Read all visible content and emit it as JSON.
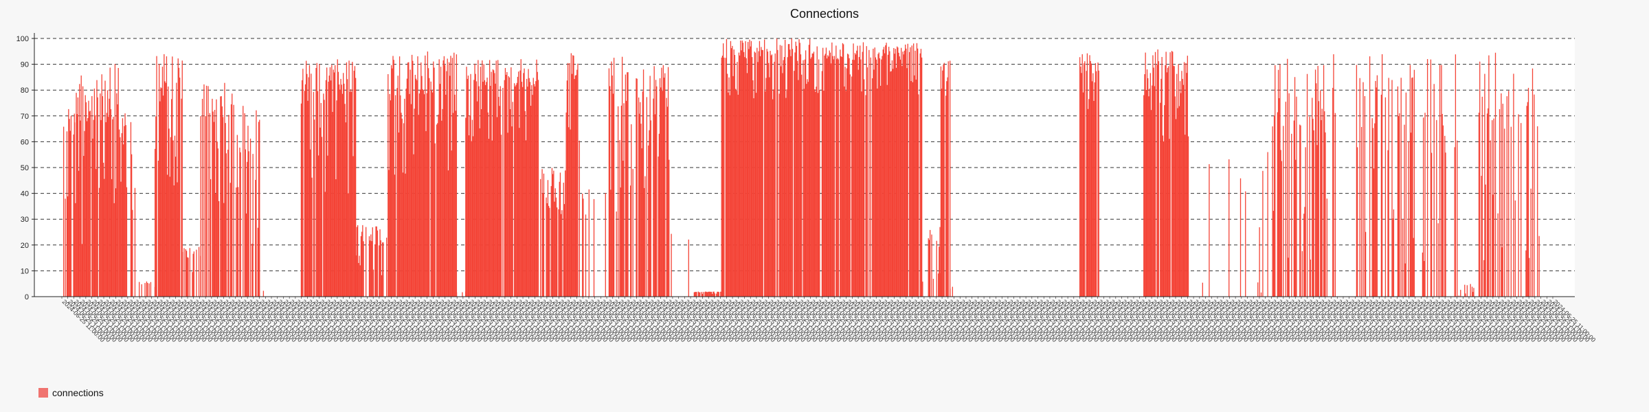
{
  "chart_data": {
    "type": "bar",
    "title": "Connections",
    "xlabel": "",
    "ylabel": "",
    "ylim": [
      0,
      100
    ],
    "yticks": [
      0,
      10,
      20,
      30,
      40,
      50,
      60,
      70,
      80,
      90,
      100
    ],
    "grid": true,
    "legend_position": "bottom-left",
    "colors": {
      "bar": "#f44336",
      "legend": "#f07470",
      "grid": "#333333",
      "axis": "#222222",
      "background": "#ffffff"
    },
    "tick_label_text": "2024-06-25 11:00:00",
    "tick_count": 250,
    "series": [
      {
        "name": "connections",
        "segments": [
          {
            "from": 0.0,
            "to": 0.012,
            "base": 30,
            "peak": 76,
            "density": 0.8
          },
          {
            "from": 0.012,
            "to": 0.06,
            "base": 20,
            "peak": 92,
            "density": 0.9
          },
          {
            "from": 0.06,
            "to": 0.08,
            "base": 30,
            "peak": 72,
            "density": 0.7
          },
          {
            "from": 0.08,
            "to": 0.1,
            "base": 2,
            "peak": 6,
            "density": 0.4
          },
          {
            "from": 0.1,
            "to": 0.13,
            "base": 40,
            "peak": 94,
            "density": 0.9
          },
          {
            "from": 0.13,
            "to": 0.15,
            "base": 5,
            "peak": 20,
            "density": 0.5
          },
          {
            "from": 0.15,
            "to": 0.19,
            "base": 35,
            "peak": 84,
            "density": 0.8
          },
          {
            "from": 0.19,
            "to": 0.215,
            "base": 20,
            "peak": 74,
            "density": 0.7
          },
          {
            "from": 0.215,
            "to": 0.225,
            "base": 0,
            "peak": 3,
            "density": 0.3
          },
          {
            "from": 0.225,
            "to": 0.26,
            "base": 0,
            "peak": 0,
            "density": 0.0
          },
          {
            "from": 0.26,
            "to": 0.32,
            "base": 40,
            "peak": 93,
            "density": 0.9
          },
          {
            "from": 0.32,
            "to": 0.355,
            "base": 8,
            "peak": 28,
            "density": 0.7
          },
          {
            "from": 0.355,
            "to": 0.43,
            "base": 45,
            "peak": 95,
            "density": 0.95
          },
          {
            "from": 0.43,
            "to": 0.44,
            "base": 0,
            "peak": 2,
            "density": 0.3
          },
          {
            "from": 0.44,
            "to": 0.52,
            "base": 60,
            "peak": 92,
            "density": 0.95
          },
          {
            "from": 0.52,
            "to": 0.55,
            "base": 25,
            "peak": 50,
            "density": 0.8
          },
          {
            "from": 0.55,
            "to": 0.565,
            "base": 60,
            "peak": 95,
            "density": 0.9
          },
          {
            "from": 0.565,
            "to": 0.595,
            "base": 0,
            "peak": 42,
            "density": 0.15
          },
          {
            "from": 0.595,
            "to": 0.63,
            "base": 30,
            "peak": 96,
            "density": 0.7
          },
          {
            "from": 0.63,
            "to": 0.665,
            "base": 40,
            "peak": 90,
            "density": 0.8
          },
          {
            "from": 0.665,
            "to": 0.69,
            "base": 0,
            "peak": 30,
            "density": 0.15
          },
          {
            "from": 0.69,
            "to": 0.72,
            "base": 1,
            "peak": 2,
            "density": 0.9
          },
          {
            "from": 0.72,
            "to": 0.82,
            "base": 75,
            "peak": 100,
            "density": 0.95
          },
          {
            "from": 0.82,
            "to": 0.94,
            "base": 78,
            "peak": 99,
            "density": 0.95
          },
          {
            "from": 0.94,
            "to": 0.96,
            "base": 5,
            "peak": 30,
            "density": 0.5
          },
          {
            "from": 0.96,
            "to": 0.97,
            "base": 70,
            "peak": 92,
            "density": 0.9
          },
          {
            "from": 0.97,
            "to": 0.975,
            "base": 0,
            "peak": 4,
            "density": 0.2
          },
          {
            "from": 0.975,
            "to": 1.0,
            "base": 0,
            "peak": 0,
            "density": 0.0
          }
        ],
        "extra_segments": [
          {
            "from": 1.08,
            "to": 1.095,
            "base": 70,
            "peak": 95,
            "density": 0.95
          },
          {
            "from": 1.13,
            "to": 1.165,
            "base": 60,
            "peak": 96,
            "density": 0.95
          },
          {
            "from": 1.165,
            "to": 1.23,
            "base": 0,
            "peak": 60,
            "density": 0.12
          },
          {
            "from": 1.23,
            "to": 1.28,
            "base": 3,
            "peak": 95,
            "density": 0.5
          },
          {
            "from": 1.28,
            "to": 1.295,
            "base": 0,
            "peak": 0,
            "density": 0.0
          },
          {
            "from": 1.295,
            "to": 1.375,
            "base": 3,
            "peak": 94,
            "density": 0.5
          },
          {
            "from": 1.375,
            "to": 1.39,
            "base": 0,
            "peak": 5,
            "density": 0.3
          },
          {
            "from": 1.39,
            "to": 1.44,
            "base": 3,
            "peak": 95,
            "density": 0.5
          }
        ]
      }
    ]
  }
}
